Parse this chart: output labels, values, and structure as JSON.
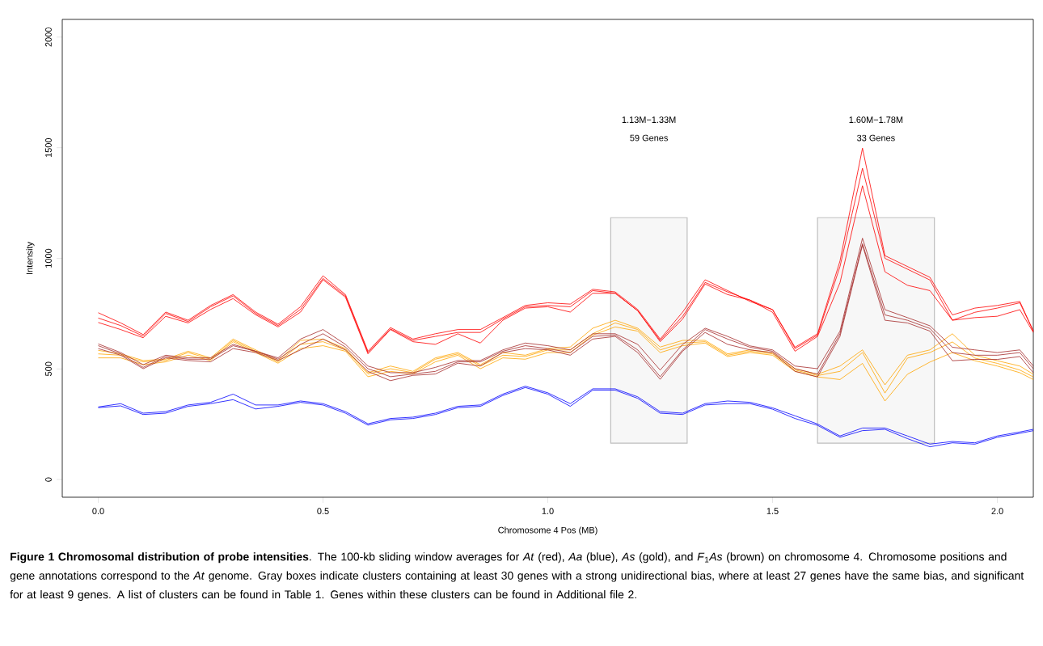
{
  "chart_data": {
    "type": "line",
    "xlabel": "Chromosome 4 Pos (MB)",
    "ylabel": "Intensity",
    "x": [
      0,
      0.05,
      0.1,
      0.15,
      0.2,
      0.25,
      0.3,
      0.35,
      0.4,
      0.45,
      0.5,
      0.55,
      0.6,
      0.65,
      0.7,
      0.75,
      0.8,
      0.85,
      0.9,
      0.95,
      1.0,
      1.05,
      1.1,
      1.15,
      1.2,
      1.25,
      1.3,
      1.35,
      1.4,
      1.45,
      1.5,
      1.55,
      1.6,
      1.65,
      1.7,
      1.75,
      1.8,
      1.85,
      1.9,
      1.95,
      2.0,
      2.05,
      2.08
    ],
    "series": [
      {
        "color": "#ff0000",
        "values": [
          754,
          708,
          655,
          757,
          720,
          787,
          836,
          757,
          702,
          781,
          921,
          836,
          580,
          687,
          635,
          659,
          678,
          678,
          732,
          787,
          799,
          793,
          860,
          848,
          769,
          635,
          757,
          903,
          854,
          805,
          768,
          598,
          659,
          988,
          1498,
          1012,
          963,
          914,
          744,
          775,
          787,
          805,
          671
        ]
      },
      {
        "color": "#ff0000",
        "values": [
          730,
          696,
          648,
          751,
          714,
          781,
          830,
          751,
          696,
          769,
          909,
          830,
          574,
          681,
          629,
          647,
          665,
          665,
          726,
          781,
          787,
          781,
          854,
          842,
          763,
          629,
          738,
          891,
          848,
          811,
          768,
          592,
          653,
          963,
          1407,
          1000,
          951,
          902,
          720,
          756,
          775,
          799,
          671
        ]
      },
      {
        "color": "#ff0000",
        "values": [
          710,
          678,
          641,
          738,
          708,
          769,
          818,
          745,
          690,
          757,
          903,
          824,
          568,
          678,
          623,
          611,
          659,
          617,
          720,
          775,
          781,
          757,
          842,
          842,
          763,
          623,
          726,
          884,
          836,
          811,
          756,
          580,
          647,
          890,
          1328,
          939,
          878,
          854,
          720,
          732,
          738,
          768,
          665
        ]
      },
      {
        "color": "#0000ff",
        "values": [
          328,
          343,
          300,
          307,
          337,
          349,
          386,
          337,
          337,
          355,
          343,
          307,
          252,
          276,
          282,
          300,
          331,
          337,
          386,
          422,
          392,
          343,
          410,
          410,
          374,
          307,
          300,
          343,
          355,
          349,
          324,
          288,
          251,
          197,
          233,
          233,
          197,
          160,
          172,
          166,
          197,
          215,
          227
        ]
      },
      {
        "color": "#0000ff",
        "values": [
          325,
          333,
          294,
          300,
          331,
          343,
          361,
          319,
          331,
          349,
          337,
          300,
          246,
          270,
          276,
          294,
          325,
          331,
          380,
          416,
          386,
          331,
          404,
          404,
          367,
          300,
          294,
          337,
          343,
          343,
          318,
          276,
          245,
          191,
          221,
          227,
          185,
          148,
          166,
          160,
          191,
          209,
          221
        ]
      },
      {
        "color": "#ffa500",
        "values": [
          584,
          568,
          538,
          544,
          580,
          550,
          635,
          586,
          538,
          629,
          635,
          592,
          483,
          513,
          489,
          550,
          574,
          519,
          574,
          562,
          592,
          599,
          684,
          720,
          684,
          599,
          629,
          629,
          568,
          586,
          574,
          501,
          476,
          513,
          586,
          428,
          562,
          586,
          659,
          562,
          537,
          513,
          476
        ]
      },
      {
        "color": "#ffa500",
        "values": [
          568,
          562,
          532,
          538,
          574,
          544,
          629,
          580,
          532,
          611,
          623,
          586,
          477,
          501,
          483,
          544,
          568,
          513,
          562,
          556,
          586,
          586,
          659,
          708,
          678,
          586,
          617,
          623,
          562,
          580,
          568,
          495,
          470,
          489,
          574,
          391,
          549,
          574,
          622,
          549,
          525,
          495,
          464
        ]
      },
      {
        "color": "#ffa500",
        "values": [
          550,
          550,
          519,
          532,
          562,
          538,
          623,
          574,
          526,
          592,
          605,
          580,
          465,
          489,
          477,
          532,
          562,
          501,
          550,
          544,
          574,
          574,
          653,
          690,
          671,
          574,
          605,
          617,
          556,
          574,
          562,
          489,
          464,
          452,
          525,
          355,
          476,
          531,
          574,
          537,
          513,
          483,
          452
        ]
      },
      {
        "color": "#a52a2a",
        "values": [
          613,
          574,
          519,
          562,
          550,
          550,
          611,
          580,
          550,
          635,
          678,
          611,
          513,
          483,
          483,
          507,
          538,
          538,
          586,
          617,
          605,
          586,
          659,
          659,
          611,
          495,
          611,
          684,
          647,
          604,
          586,
          513,
          501,
          671,
          1091,
          768,
          732,
          695,
          598,
          586,
          574,
          586,
          513
        ]
      },
      {
        "color": "#a52a2a",
        "values": [
          605,
          568,
          507,
          556,
          544,
          544,
          605,
          580,
          544,
          611,
          659,
          599,
          501,
          465,
          477,
          489,
          532,
          532,
          580,
          605,
          592,
          574,
          647,
          653,
          586,
          465,
          586,
          678,
          635,
          598,
          580,
          501,
          476,
          659,
          1066,
          744,
          720,
          683,
          574,
          562,
          562,
          574,
          501
        ]
      },
      {
        "color": "#a52a2a",
        "values": [
          592,
          562,
          501,
          550,
          538,
          532,
          592,
          574,
          538,
          586,
          635,
          586,
          489,
          447,
          471,
          477,
          526,
          513,
          574,
          592,
          586,
          562,
          635,
          647,
          574,
          453,
          580,
          665,
          611,
          586,
          574,
          489,
          464,
          647,
          1060,
          720,
          708,
          671,
          537,
          543,
          543,
          556,
          483
        ]
      }
    ],
    "xlim": [
      -0.08,
      2.08
    ],
    "ylim": [
      -80,
      2080
    ],
    "xticks": [
      {
        "value": 0,
        "label": "0.0"
      },
      {
        "value": 0.5,
        "label": "0.5"
      },
      {
        "value": 1,
        "label": "1.0"
      },
      {
        "value": 1.5,
        "label": "1.5"
      },
      {
        "value": 2,
        "label": "2.0"
      }
    ],
    "yticks": [
      0,
      500,
      1000,
      1500,
      2000
    ],
    "bands": [
      {
        "axis": "x",
        "from": 1.14,
        "to": 1.31,
        "color": "#bebebe"
      },
      {
        "axis": "x",
        "from": 1.6,
        "to": 1.86,
        "color": "#bebebe"
      }
    ],
    "annotations": [
      "1.13M−1.33M",
      "59 Genes",
      "1.60M−1.78M",
      "33 Genes",
      "**Figure 1 Chromosomal distribution of probe intensities**. The 100-kb sliding window averages for *At* (red), *Aa* (blue), *As* (gold), and *F*$_{1}$*As* (brown) on chromosome 4. Chromosome positions and gene annotations correspond to the *At* genome. Gray boxes indicate clusters containing at least 30 genes with a strong unidirectional bias, where at least 27 genes have the same bias, and significant for at least 9 genes. A list of clusters can be found in Table 1. Genes within these clusters can be found in Additional file 2."
    ]
  }
}
